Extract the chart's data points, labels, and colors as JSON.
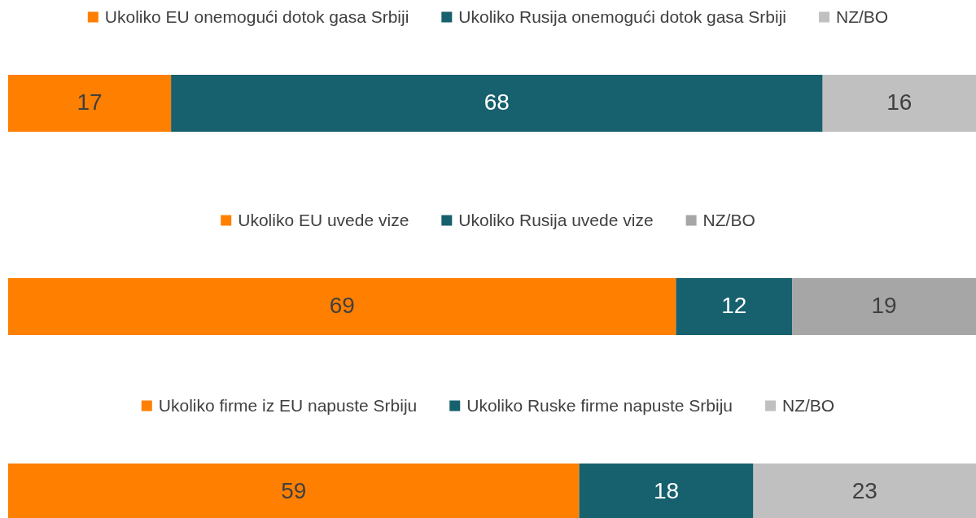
{
  "chart_data": [
    {
      "type": "bar",
      "orientation": "horizontal",
      "stacked": true,
      "categories": [
        null
      ],
      "xlim": [
        0,
        101
      ],
      "legend": "top",
      "data_labels": true,
      "series": [
        {
          "name": "Ukoliko EU onemogući dotok gasa Srbiji",
          "color": "#ff7f00",
          "values": [
            17
          ]
        },
        {
          "name": "Ukoliko Rusija onemogući dotok gasa Srbiji",
          "color": "#17606e",
          "values": [
            68
          ]
        },
        {
          "name": "NZ/BO",
          "color": "#c0c0c0",
          "values": [
            16
          ]
        }
      ]
    },
    {
      "type": "bar",
      "orientation": "horizontal",
      "stacked": true,
      "categories": [
        null
      ],
      "xlim": [
        0,
        100
      ],
      "legend": "top",
      "data_labels": true,
      "series": [
        {
          "name": "Ukoliko EU uvede vize",
          "color": "#ff7f00",
          "values": [
            69
          ]
        },
        {
          "name": "Ukoliko Rusija uvede vize",
          "color": "#17606e",
          "values": [
            12
          ]
        },
        {
          "name": "NZ/BO",
          "color": "#a6a6a6",
          "values": [
            19
          ]
        }
      ]
    },
    {
      "type": "bar",
      "orientation": "horizontal",
      "stacked": true,
      "categories": [
        null
      ],
      "xlim": [
        0,
        100
      ],
      "legend": "top",
      "data_labels": true,
      "series": [
        {
          "name": "Ukoliko firme iz EU napuste Srbiju",
          "color": "#ff7f00",
          "values": [
            59
          ]
        },
        {
          "name": "Ukoliko Ruske firme napuste Srbiju",
          "color": "#17606e",
          "values": [
            18
          ]
        },
        {
          "name": "NZ/BO",
          "color": "#c0c0c0",
          "values": [
            23
          ]
        }
      ]
    }
  ]
}
